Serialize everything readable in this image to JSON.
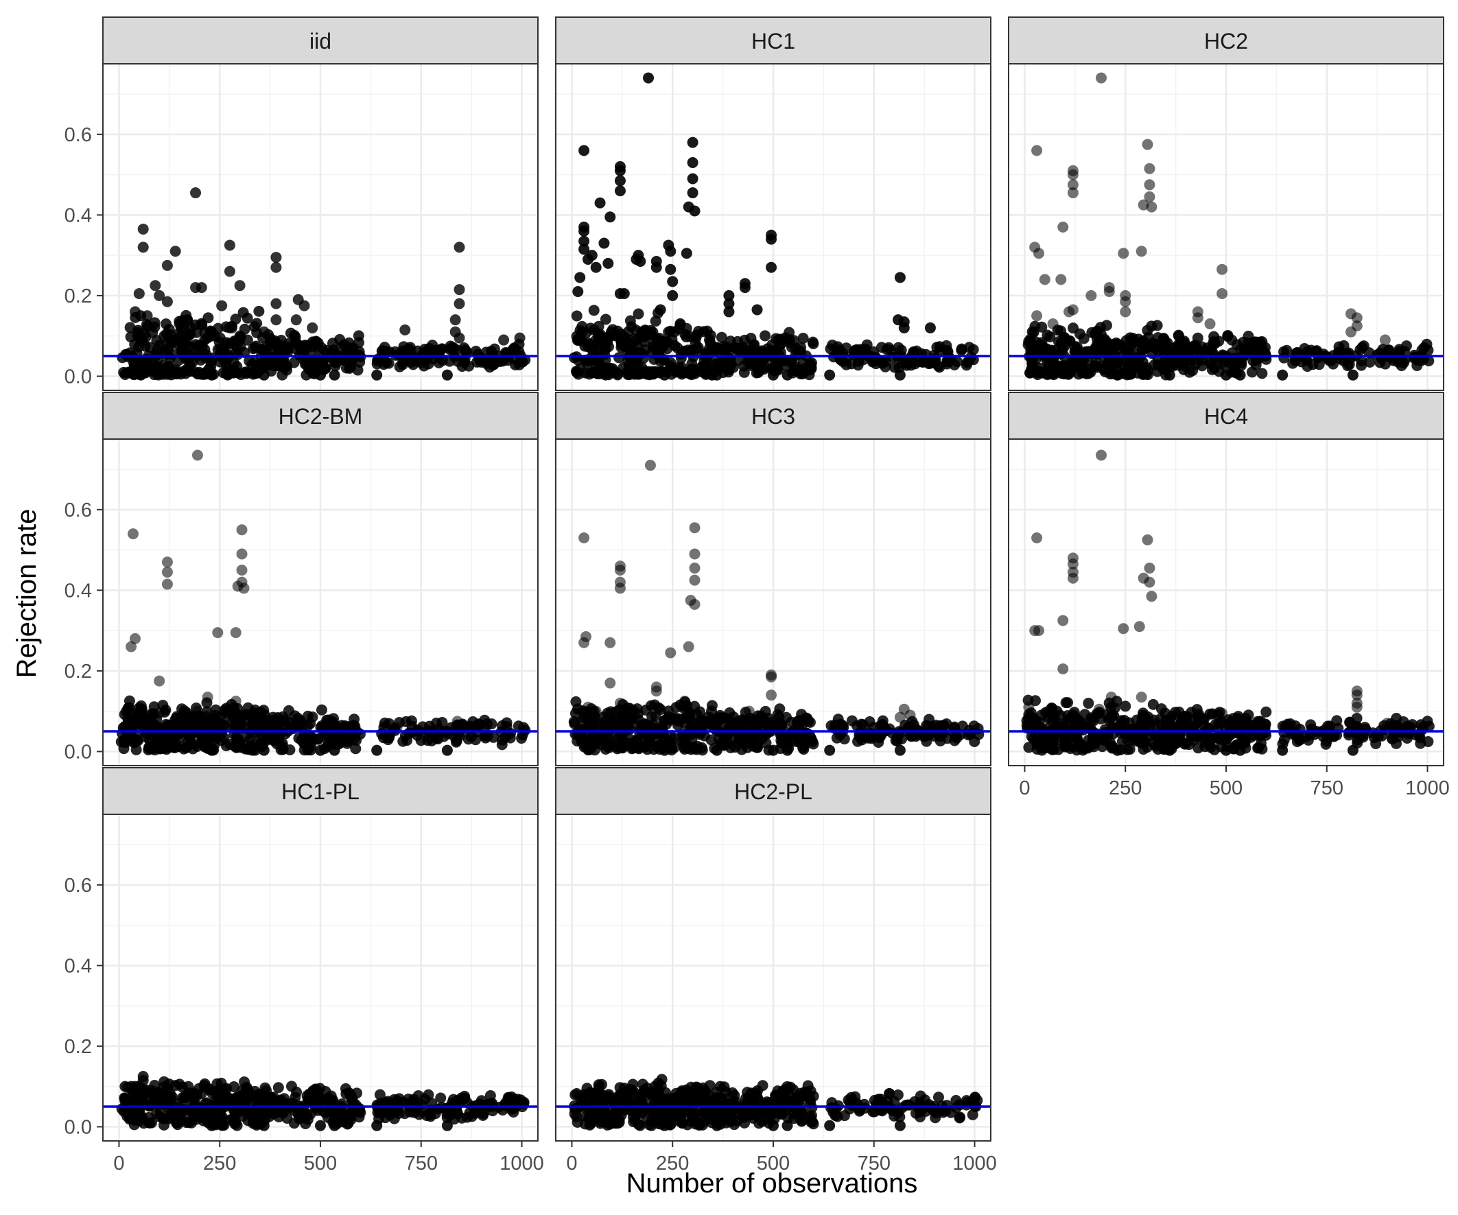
{
  "chart_data": {
    "type": "scatter",
    "xlabel": "Number of observations",
    "ylabel": "Rejection rate",
    "xlim": [
      -40,
      1040
    ],
    "ylim": [
      -0.035,
      0.775
    ],
    "x_ticks": [
      0,
      250,
      500,
      750,
      1000
    ],
    "x_tick_labels": [
      "0",
      "250",
      "500",
      "750",
      "1000"
    ],
    "y_ticks": [
      0.0,
      0.2,
      0.4,
      0.6
    ],
    "y_tick_labels": [
      "0.0",
      "0.2",
      "0.4",
      "0.6"
    ],
    "reference_line": {
      "y": 0.05,
      "color": "#0000dd"
    },
    "colors": {
      "point": "#000000",
      "strip": "#d9d9d9",
      "grid": "#ebebeb",
      "border": "#333333"
    },
    "panels": [
      {
        "name": "iid",
        "point_alpha": 0.8,
        "points": [
          [
            190,
            0.455
          ],
          [
            60,
            0.365
          ],
          [
            60,
            0.32
          ],
          [
            140,
            0.31
          ],
          [
            120,
            0.275
          ],
          [
            275,
            0.325
          ],
          [
            275,
            0.26
          ],
          [
            390,
            0.295
          ],
          [
            390,
            0.27
          ],
          [
            845,
            0.32
          ],
          [
            300,
            0.225
          ],
          [
            190,
            0.22
          ],
          [
            205,
            0.22
          ],
          [
            90,
            0.225
          ],
          [
            120,
            0.185
          ],
          [
            445,
            0.19
          ],
          [
            460,
            0.175
          ],
          [
            255,
            0.175
          ],
          [
            440,
            0.14
          ],
          [
            845,
            0.215
          ],
          [
            845,
            0.18
          ],
          [
            390,
            0.18
          ],
          [
            390,
            0.14
          ],
          [
            100,
            0.2
          ],
          [
            50,
            0.205
          ],
          [
            170,
            0.14
          ],
          [
            70,
            0.15
          ],
          [
            40,
            0.16
          ],
          [
            150,
            0.13
          ],
          [
            280,
            0.12
          ],
          [
            480,
            0.12
          ],
          [
            710,
            0.115
          ],
          [
            835,
            0.14
          ],
          [
            835,
            0.11
          ],
          [
            845,
            0.095
          ],
          [
            995,
            0.095
          ],
          [
            955,
            0.09
          ],
          [
            300,
            0.1
          ],
          [
            230,
            0.11
          ],
          [
            360,
            0.11
          ]
        ]
      },
      {
        "name": "HC1",
        "point_alpha": 0.9,
        "points": [
          [
            190,
            0.74
          ],
          [
            30,
            0.56
          ],
          [
            300,
            0.58
          ],
          [
            300,
            0.53
          ],
          [
            300,
            0.49
          ],
          [
            300,
            0.455
          ],
          [
            290,
            0.42
          ],
          [
            305,
            0.41
          ],
          [
            120,
            0.52
          ],
          [
            120,
            0.51
          ],
          [
            120,
            0.485
          ],
          [
            120,
            0.46
          ],
          [
            70,
            0.43
          ],
          [
            95,
            0.395
          ],
          [
            30,
            0.37
          ],
          [
            30,
            0.36
          ],
          [
            30,
            0.335
          ],
          [
            30,
            0.315
          ],
          [
            40,
            0.29
          ],
          [
            80,
            0.33
          ],
          [
            50,
            0.3
          ],
          [
            160,
            0.29
          ],
          [
            165,
            0.3
          ],
          [
            170,
            0.285
          ],
          [
            210,
            0.285
          ],
          [
            210,
            0.27
          ],
          [
            240,
            0.325
          ],
          [
            245,
            0.31
          ],
          [
            285,
            0.305
          ],
          [
            495,
            0.35
          ],
          [
            495,
            0.34
          ],
          [
            495,
            0.27
          ],
          [
            815,
            0.245
          ],
          [
            245,
            0.265
          ],
          [
            250,
            0.235
          ],
          [
            430,
            0.23
          ],
          [
            430,
            0.22
          ],
          [
            390,
            0.2
          ],
          [
            390,
            0.18
          ],
          [
            20,
            0.245
          ],
          [
            15,
            0.21
          ],
          [
            120,
            0.205
          ],
          [
            130,
            0.205
          ],
          [
            250,
            0.2
          ],
          [
            460,
            0.165
          ],
          [
            390,
            0.16
          ],
          [
            220,
            0.165
          ],
          [
            90,
            0.28
          ],
          [
            60,
            0.27
          ],
          [
            810,
            0.14
          ],
          [
            825,
            0.135
          ],
          [
            825,
            0.12
          ],
          [
            890,
            0.12
          ]
        ]
      },
      {
        "name": "HC2",
        "point_alpha": 0.55,
        "points": [
          [
            190,
            0.74
          ],
          [
            30,
            0.56
          ],
          [
            305,
            0.575
          ],
          [
            310,
            0.515
          ],
          [
            310,
            0.475
          ],
          [
            310,
            0.445
          ],
          [
            315,
            0.42
          ],
          [
            295,
            0.425
          ],
          [
            120,
            0.51
          ],
          [
            120,
            0.5
          ],
          [
            120,
            0.475
          ],
          [
            120,
            0.455
          ],
          [
            95,
            0.37
          ],
          [
            25,
            0.32
          ],
          [
            35,
            0.305
          ],
          [
            245,
            0.305
          ],
          [
            290,
            0.31
          ],
          [
            90,
            0.24
          ],
          [
            490,
            0.265
          ],
          [
            490,
            0.205
          ],
          [
            50,
            0.24
          ],
          [
            210,
            0.22
          ],
          [
            210,
            0.21
          ],
          [
            250,
            0.2
          ],
          [
            250,
            0.185
          ],
          [
            165,
            0.2
          ],
          [
            430,
            0.16
          ],
          [
            430,
            0.145
          ],
          [
            460,
            0.13
          ],
          [
            250,
            0.16
          ],
          [
            810,
            0.155
          ],
          [
            825,
            0.145
          ],
          [
            825,
            0.125
          ],
          [
            810,
            0.11
          ],
          [
            895,
            0.09
          ],
          [
            120,
            0.165
          ],
          [
            110,
            0.16
          ],
          [
            70,
            0.13
          ],
          [
            30,
            0.15
          ]
        ]
      },
      {
        "name": "HC2-BM",
        "point_alpha": 0.55,
        "points": [
          [
            195,
            0.735
          ],
          [
            35,
            0.54
          ],
          [
            305,
            0.55
          ],
          [
            305,
            0.49
          ],
          [
            305,
            0.45
          ],
          [
            305,
            0.42
          ],
          [
            295,
            0.41
          ],
          [
            310,
            0.405
          ],
          [
            120,
            0.47
          ],
          [
            120,
            0.445
          ],
          [
            120,
            0.415
          ],
          [
            40,
            0.28
          ],
          [
            30,
            0.26
          ],
          [
            245,
            0.295
          ],
          [
            290,
            0.295
          ],
          [
            100,
            0.175
          ],
          [
            220,
            0.135
          ],
          [
            290,
            0.125
          ],
          [
            195,
            0.1
          ],
          [
            195,
            0.085
          ],
          [
            100,
            0.095
          ],
          [
            30,
            0.09
          ],
          [
            560,
            0.055
          ],
          [
            690,
            0.06
          ],
          [
            840,
            0.075
          ]
        ]
      },
      {
        "name": "HC3",
        "point_alpha": 0.55,
        "points": [
          [
            195,
            0.71
          ],
          [
            30,
            0.53
          ],
          [
            305,
            0.555
          ],
          [
            305,
            0.49
          ],
          [
            305,
            0.455
          ],
          [
            305,
            0.425
          ],
          [
            305,
            0.365
          ],
          [
            295,
            0.375
          ],
          [
            120,
            0.46
          ],
          [
            120,
            0.45
          ],
          [
            120,
            0.42
          ],
          [
            120,
            0.405
          ],
          [
            35,
            0.285
          ],
          [
            30,
            0.27
          ],
          [
            95,
            0.27
          ],
          [
            245,
            0.245
          ],
          [
            290,
            0.26
          ],
          [
            95,
            0.17
          ],
          [
            495,
            0.19
          ],
          [
            495,
            0.185
          ],
          [
            495,
            0.14
          ],
          [
            210,
            0.16
          ],
          [
            210,
            0.15
          ],
          [
            440,
            0.1
          ],
          [
            280,
            0.125
          ],
          [
            120,
            0.12
          ],
          [
            825,
            0.105
          ],
          [
            840,
            0.09
          ],
          [
            815,
            0.085
          ],
          [
            290,
            0.09
          ],
          [
            40,
            0.11
          ],
          [
            60,
            0.1
          ],
          [
            150,
            0.1
          ]
        ]
      },
      {
        "name": "HC4",
        "point_alpha": 0.55,
        "points": [
          [
            190,
            0.735
          ],
          [
            30,
            0.53
          ],
          [
            305,
            0.525
          ],
          [
            310,
            0.455
          ],
          [
            310,
            0.42
          ],
          [
            315,
            0.385
          ],
          [
            295,
            0.43
          ],
          [
            120,
            0.48
          ],
          [
            120,
            0.465
          ],
          [
            120,
            0.445
          ],
          [
            120,
            0.43
          ],
          [
            25,
            0.3
          ],
          [
            35,
            0.3
          ],
          [
            95,
            0.325
          ],
          [
            245,
            0.305
          ],
          [
            285,
            0.31
          ],
          [
            95,
            0.205
          ],
          [
            215,
            0.135
          ],
          [
            290,
            0.135
          ],
          [
            825,
            0.15
          ],
          [
            825,
            0.14
          ],
          [
            825,
            0.12
          ],
          [
            825,
            0.11
          ],
          [
            490,
            0.095
          ],
          [
            185,
            0.105
          ],
          [
            10,
            0.11
          ],
          [
            60,
            0.085
          ],
          [
            900,
            0.07
          ]
        ]
      },
      {
        "name": "HC1-PL",
        "point_alpha": 0.85,
        "points": [
          [
            60,
            0.125
          ],
          [
            60,
            0.115
          ],
          [
            15,
            0.1
          ],
          [
            30,
            0.1
          ],
          [
            40,
            0.1
          ],
          [
            120,
            0.095
          ],
          [
            80,
            0.09
          ],
          [
            250,
            0.09
          ],
          [
            240,
            0.085
          ],
          [
            100,
            0.085
          ],
          [
            170,
            0.08
          ],
          [
            300,
            0.075
          ],
          [
            410,
            0.07
          ],
          [
            490,
            0.07
          ],
          [
            900,
            0.065
          ],
          [
            690,
            0.065
          ],
          [
            840,
            0.065
          ]
        ]
      },
      {
        "name": "HC2-PL",
        "point_alpha": 0.85,
        "points": [
          [
            65,
            0.09
          ],
          [
            30,
            0.08
          ],
          [
            45,
            0.085
          ],
          [
            90,
            0.075
          ],
          [
            120,
            0.075
          ],
          [
            160,
            0.07
          ],
          [
            250,
            0.07
          ],
          [
            300,
            0.065
          ],
          [
            490,
            0.06
          ],
          [
            690,
            0.06
          ]
        ]
      }
    ]
  }
}
